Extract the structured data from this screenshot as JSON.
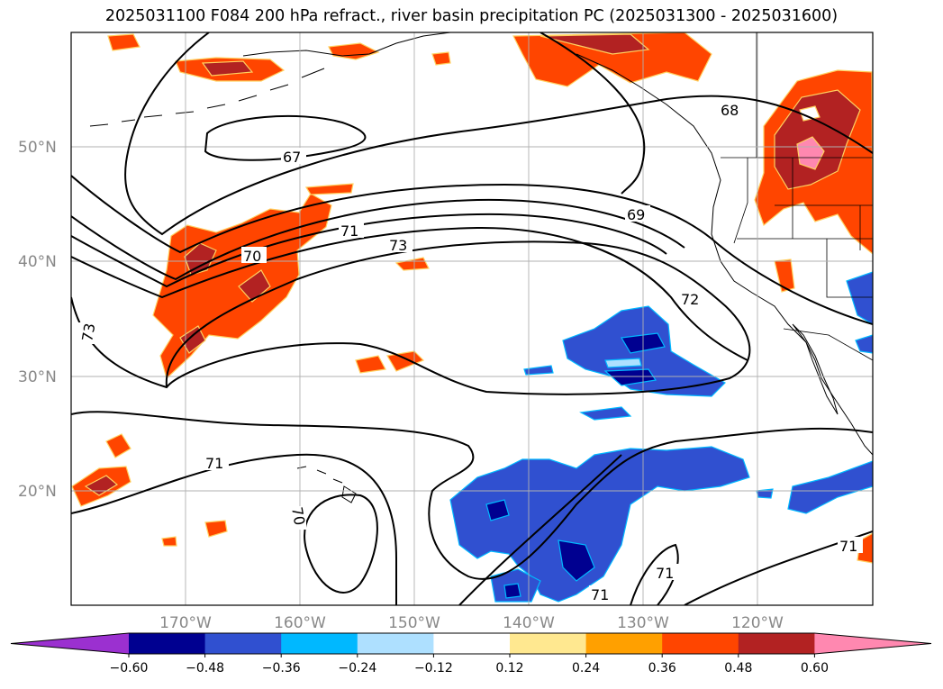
{
  "title": "2025031100 F084 200 hPa refract., river basin precipitation PC (2025031300 - 2025031600)",
  "lat_labels": [
    "50°N",
    "40°N",
    "30°N",
    "20°N"
  ],
  "lon_labels": [
    "170°W",
    "160°W",
    "150°W",
    "140°W",
    "130°W",
    "120°W"
  ],
  "colorbar": {
    "ticks": [
      "−0.60",
      "−0.48",
      "−0.36",
      "−0.24",
      "−0.12",
      "0.12",
      "0.24",
      "0.36",
      "0.48",
      "0.60"
    ],
    "colors": [
      "#9b30d0",
      "#000090",
      "#3050d0",
      "#00b8ff",
      "#aee0ff",
      "#ffffff",
      "#ffe890",
      "#ffa000",
      "#ff4500",
      "#b22222",
      "#ff88b0"
    ]
  },
  "contour_labels": [
    "67",
    "68",
    "69",
    "70",
    "71",
    "72",
    "73",
    "73",
    "71",
    "70",
    "71",
    "71",
    "71"
  ],
  "chart_data": {
    "type": "map",
    "projection": "equirectangular",
    "lon_range": [
      -180,
      -110
    ],
    "lat_range": [
      10,
      60
    ],
    "contour_field": "200 hPa refractivity",
    "contour_levels_labeled": [
      67,
      68,
      69,
      70,
      71,
      72,
      73
    ],
    "shaded_field": "river basin precipitation PC",
    "shading_levels": [
      -0.6,
      -0.48,
      -0.36,
      -0.24,
      -0.12,
      0.12,
      0.24,
      0.36,
      0.48,
      0.6
    ]
  }
}
